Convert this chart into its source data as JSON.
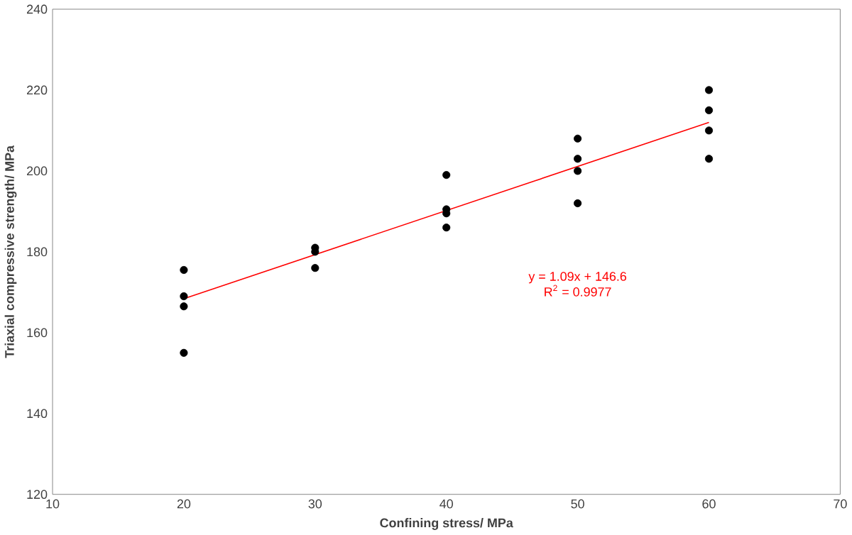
{
  "chart_data": {
    "type": "scatter",
    "xlabel": "Confining stress/ MPa",
    "ylabel": "Triaxial compressive strength/ MPa",
    "series": [
      {
        "color": "#000000",
        "marker": "circle",
        "x": [
          20,
          20,
          20,
          20,
          30,
          30,
          30,
          40,
          40,
          40,
          40,
          50,
          50,
          50,
          50,
          60,
          60,
          60,
          60
        ],
        "values": [
          175.5,
          169,
          166.5,
          155,
          181,
          180,
          176,
          199,
          190.5,
          189.5,
          186,
          208,
          203,
          200,
          192,
          220,
          215,
          210,
          203
        ]
      },
      {
        "type": "line",
        "color": "#ff0000",
        "marker": "none",
        "x": [
          20,
          60
        ],
        "values": [
          168.4,
          212
        ]
      }
    ],
    "annotations": [
      "y = 1.09x + 146.6",
      "R$^{2}$ = 0.9977"
    ],
    "xlim": [
      10,
      70
    ],
    "xticks": [
      10,
      20,
      30,
      40,
      50,
      60,
      70
    ],
    "ylim": [
      120,
      240
    ],
    "yticks": [
      120,
      140,
      160,
      180,
      200,
      220,
      240
    ],
    "grid": false
  }
}
